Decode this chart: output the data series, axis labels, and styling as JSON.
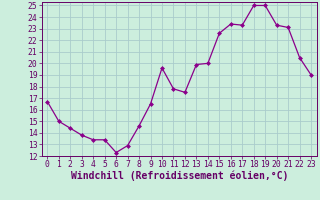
{
  "x": [
    0,
    1,
    2,
    3,
    4,
    5,
    6,
    7,
    8,
    9,
    10,
    11,
    12,
    13,
    14,
    15,
    16,
    17,
    18,
    19,
    20,
    21,
    22,
    23
  ],
  "y": [
    16.7,
    15.0,
    14.4,
    13.8,
    13.4,
    13.4,
    12.3,
    12.9,
    14.6,
    16.5,
    19.6,
    17.8,
    17.5,
    19.9,
    20.0,
    22.6,
    23.4,
    23.3,
    25.0,
    25.0,
    23.3,
    23.1,
    20.5,
    19.0
  ],
  "line_color": "#8B008B",
  "marker": "D",
  "marker_size": 2.0,
  "bg_color": "#cceedd",
  "grid_color": "#aacccc",
  "title": "Windchill (Refroidissement éolien,°C)",
  "ylim": [
    12,
    25
  ],
  "xlim": [
    -0.5,
    23.5
  ],
  "yticks": [
    12,
    13,
    14,
    15,
    16,
    17,
    18,
    19,
    20,
    21,
    22,
    23,
    24,
    25
  ],
  "xticks": [
    0,
    1,
    2,
    3,
    4,
    5,
    6,
    7,
    8,
    9,
    10,
    11,
    12,
    13,
    14,
    15,
    16,
    17,
    18,
    19,
    20,
    21,
    22,
    23
  ],
  "tick_fontsize": 5.8,
  "xlabel_fontsize": 7.0,
  "spine_color": "#660066",
  "tick_color": "#660066"
}
